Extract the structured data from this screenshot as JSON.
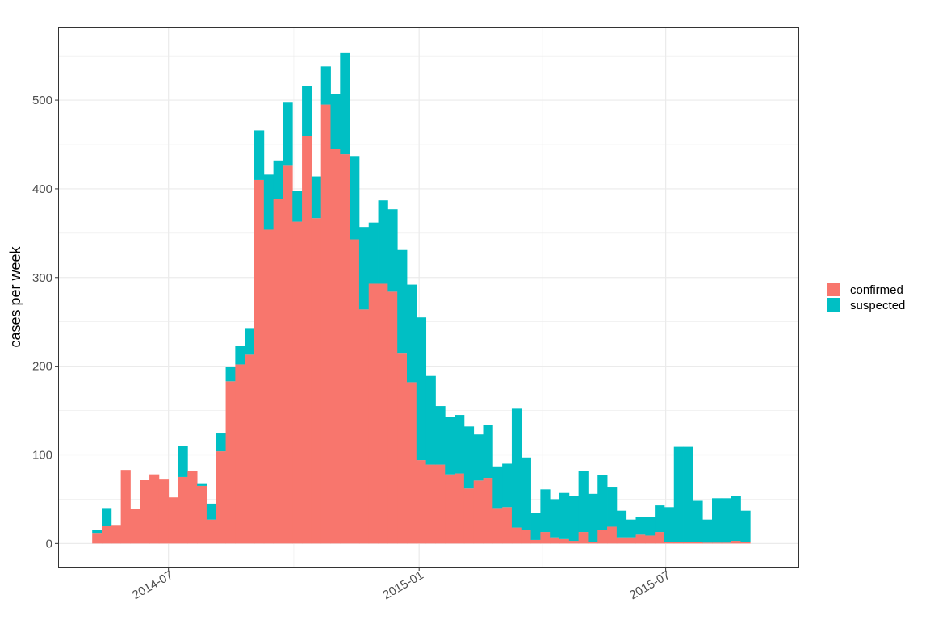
{
  "chart_data": {
    "type": "bar",
    "stacked": true,
    "title": "",
    "xlabel": "",
    "ylabel": "cases per week",
    "x_axis": {
      "type": "date",
      "range": [
        "2014-04-11",
        "2015-10-07"
      ],
      "ticks": [
        {
          "date": "2014-07-01",
          "label": "2014-07"
        },
        {
          "date": "2015-01-01",
          "label": "2015-01"
        },
        {
          "date": "2015-07-01",
          "label": "2015-07"
        }
      ]
    },
    "ylim": [
      -27,
      582
    ],
    "y_ticks": [
      0,
      100,
      200,
      300,
      400,
      500
    ],
    "grid": true,
    "legend_position": "right",
    "bin_width_days": 7,
    "first_week_start": "2014-05-06",
    "series": [
      {
        "name": "confirmed",
        "color": "#F8766D",
        "values": [
          12,
          20,
          21,
          83,
          39,
          72,
          78,
          73,
          52,
          75,
          82,
          65,
          27,
          104,
          183,
          202,
          213,
          410,
          354,
          389,
          426,
          363,
          460,
          367,
          495,
          445,
          439,
          343,
          264,
          293,
          293,
          284,
          215,
          182,
          94,
          89,
          89,
          78,
          79,
          62,
          71,
          74,
          40,
          41,
          18,
          15,
          4,
          13,
          7,
          5,
          3,
          13,
          2,
          15,
          19,
          7,
          7,
          10,
          9,
          13,
          2,
          2,
          2,
          2,
          1,
          1,
          1,
          3,
          2
        ]
      },
      {
        "name": "suspected",
        "color": "#00BFC4",
        "values": [
          3,
          20,
          0,
          0,
          0,
          0,
          0,
          0,
          0,
          35,
          0,
          3,
          18,
          21,
          16,
          21,
          30,
          56,
          62,
          43,
          72,
          35,
          56,
          47,
          43,
          62,
          114,
          94,
          93,
          69,
          94,
          93,
          116,
          110,
          161,
          100,
          66,
          65,
          66,
          70,
          52,
          60,
          47,
          49,
          134,
          82,
          30,
          48,
          43,
          52,
          51,
          69,
          54,
          62,
          45,
          30,
          20,
          20,
          21,
          30,
          39,
          107,
          107,
          47,
          26,
          50,
          50,
          51,
          35
        ]
      }
    ]
  }
}
